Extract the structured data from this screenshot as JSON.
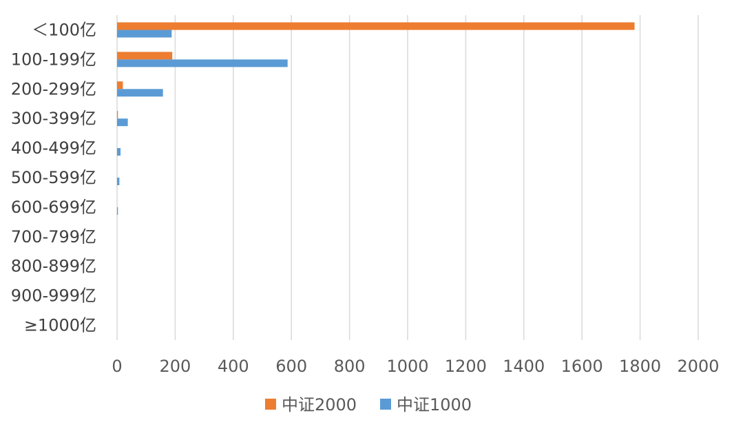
{
  "chart_data": {
    "type": "bar",
    "orientation": "horizontal",
    "categories": [
      "＜100亿",
      "100-199亿",
      "200-299亿",
      "300-399亿",
      "400-499亿",
      "500-599亿",
      "600-699亿",
      "700-799亿",
      "800-899亿",
      "900-999亿",
      "≥1000亿"
    ],
    "series": [
      {
        "name": "中证2000",
        "color": "#ED7D31",
        "values": [
          1781,
          190,
          20,
          3,
          0,
          0,
          0,
          0,
          0,
          0,
          0
        ]
      },
      {
        "name": "中证1000",
        "color": "#5B9BD5",
        "values": [
          188,
          587,
          158,
          37,
          12,
          8,
          3,
          0,
          0,
          0,
          0
        ]
      }
    ],
    "xlim": [
      0,
      2000
    ],
    "xticks": [
      0,
      200,
      400,
      600,
      800,
      1000,
      1200,
      1400,
      1600,
      1800,
      2000
    ],
    "grid": true,
    "legend_position": "bottom"
  }
}
